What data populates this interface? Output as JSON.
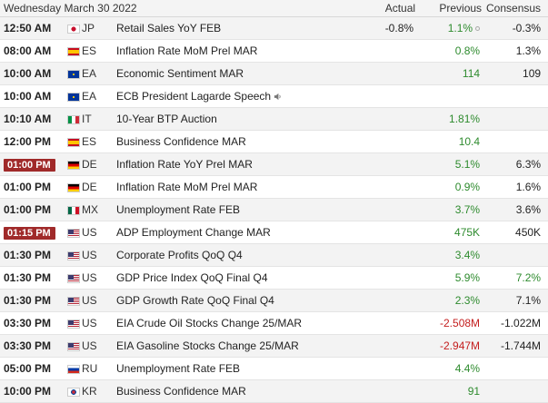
{
  "header": {
    "date": "Wednesday March 30 2022",
    "actual": "Actual",
    "previous": "Previous",
    "consensus": "Consensus"
  },
  "rows": [
    {
      "time": "12:50 AM",
      "live": false,
      "flag": "flag-jp",
      "country": "JP",
      "event": "Retail Sales YoY FEB",
      "actual": "-0.8%",
      "previous": "1.1%",
      "previous_trend": "pos",
      "previous_revised": true,
      "consensus": "-0.3%",
      "consensus_trend": "neutral",
      "speaker": false
    },
    {
      "time": "08:00 AM",
      "live": false,
      "flag": "flag-es",
      "country": "ES",
      "event": "Inflation Rate MoM Prel MAR",
      "actual": "",
      "previous": "0.8%",
      "previous_trend": "pos",
      "previous_revised": false,
      "consensus": "1.3%",
      "consensus_trend": "neutral",
      "speaker": false
    },
    {
      "time": "10:00 AM",
      "live": false,
      "flag": "flag-ea",
      "country": "EA",
      "event": "Economic Sentiment MAR",
      "actual": "",
      "previous": "114",
      "previous_trend": "pos",
      "previous_revised": false,
      "consensus": "109",
      "consensus_trend": "neutral",
      "speaker": false
    },
    {
      "time": "10:00 AM",
      "live": false,
      "flag": "flag-ea",
      "country": "EA",
      "event": "ECB President Lagarde Speech",
      "actual": "",
      "previous": "",
      "previous_trend": "neutral",
      "previous_revised": false,
      "consensus": "",
      "consensus_trend": "neutral",
      "speaker": true
    },
    {
      "time": "10:10 AM",
      "live": false,
      "flag": "flag-it",
      "country": "IT",
      "event": "10-Year BTP Auction",
      "actual": "",
      "previous": "1.81%",
      "previous_trend": "pos",
      "previous_revised": false,
      "consensus": "",
      "consensus_trend": "neutral",
      "speaker": false
    },
    {
      "time": "12:00 PM",
      "live": false,
      "flag": "flag-es",
      "country": "ES",
      "event": "Business Confidence MAR",
      "actual": "",
      "previous": "10.4",
      "previous_trend": "pos",
      "previous_revised": false,
      "consensus": "",
      "consensus_trend": "neutral",
      "speaker": false
    },
    {
      "time": "01:00 PM",
      "live": true,
      "flag": "flag-de",
      "country": "DE",
      "event": "Inflation Rate YoY Prel MAR",
      "actual": "",
      "previous": "5.1%",
      "previous_trend": "pos",
      "previous_revised": false,
      "consensus": "6.3%",
      "consensus_trend": "neutral",
      "speaker": false
    },
    {
      "time": "01:00 PM",
      "live": false,
      "flag": "flag-de",
      "country": "DE",
      "event": "Inflation Rate MoM Prel MAR",
      "actual": "",
      "previous": "0.9%",
      "previous_trend": "pos",
      "previous_revised": false,
      "consensus": "1.6%",
      "consensus_trend": "neutral",
      "speaker": false
    },
    {
      "time": "01:00 PM",
      "live": false,
      "flag": "flag-mx",
      "country": "MX",
      "event": "Unemployment Rate FEB",
      "actual": "",
      "previous": "3.7%",
      "previous_trend": "pos",
      "previous_revised": false,
      "consensus": "3.6%",
      "consensus_trend": "neutral",
      "speaker": false
    },
    {
      "time": "01:15 PM",
      "live": true,
      "flag": "flag-us",
      "country": "US",
      "event": "ADP Employment Change MAR",
      "actual": "",
      "previous": "475K",
      "previous_trend": "pos",
      "previous_revised": false,
      "consensus": "450K",
      "consensus_trend": "neutral",
      "speaker": false
    },
    {
      "time": "01:30 PM",
      "live": false,
      "flag": "flag-us",
      "country": "US",
      "event": "Corporate Profits QoQ Q4",
      "actual": "",
      "previous": "3.4%",
      "previous_trend": "pos",
      "previous_revised": false,
      "consensus": "",
      "consensus_trend": "neutral",
      "speaker": false
    },
    {
      "time": "01:30 PM",
      "live": false,
      "flag": "flag-us",
      "country": "US",
      "event": "GDP Price Index QoQ Final Q4",
      "actual": "",
      "previous": "5.9%",
      "previous_trend": "pos",
      "previous_revised": false,
      "consensus": "7.2%",
      "consensus_trend": "pos",
      "speaker": false
    },
    {
      "time": "01:30 PM",
      "live": false,
      "flag": "flag-us",
      "country": "US",
      "event": "GDP Growth Rate QoQ Final Q4",
      "actual": "",
      "previous": "2.3%",
      "previous_trend": "pos",
      "previous_revised": false,
      "consensus": "7.1%",
      "consensus_trend": "neutral",
      "speaker": false
    },
    {
      "time": "03:30 PM",
      "live": false,
      "flag": "flag-us",
      "country": "US",
      "event": "EIA Crude Oil Stocks Change 25/MAR",
      "actual": "",
      "previous": "-2.508M",
      "previous_trend": "neg",
      "previous_revised": false,
      "consensus": "-1.022M",
      "consensus_trend": "neutral",
      "speaker": false
    },
    {
      "time": "03:30 PM",
      "live": false,
      "flag": "flag-us",
      "country": "US",
      "event": "EIA Gasoline Stocks Change 25/MAR",
      "actual": "",
      "previous": "-2.947M",
      "previous_trend": "neg",
      "previous_revised": false,
      "consensus": "-1.744M",
      "consensus_trend": "neutral",
      "speaker": false
    },
    {
      "time": "05:00 PM",
      "live": false,
      "flag": "flag-ru",
      "country": "RU",
      "event": "Unemployment Rate FEB",
      "actual": "",
      "previous": "4.4%",
      "previous_trend": "pos",
      "previous_revised": false,
      "consensus": "",
      "consensus_trend": "neutral",
      "speaker": false
    },
    {
      "time": "10:00 PM",
      "live": false,
      "flag": "flag-kr",
      "country": "KR",
      "event": "Business Confidence MAR",
      "actual": "",
      "previous": "91",
      "previous_trend": "pos",
      "previous_revised": false,
      "consensus": "",
      "consensus_trend": "neutral",
      "speaker": false
    }
  ]
}
